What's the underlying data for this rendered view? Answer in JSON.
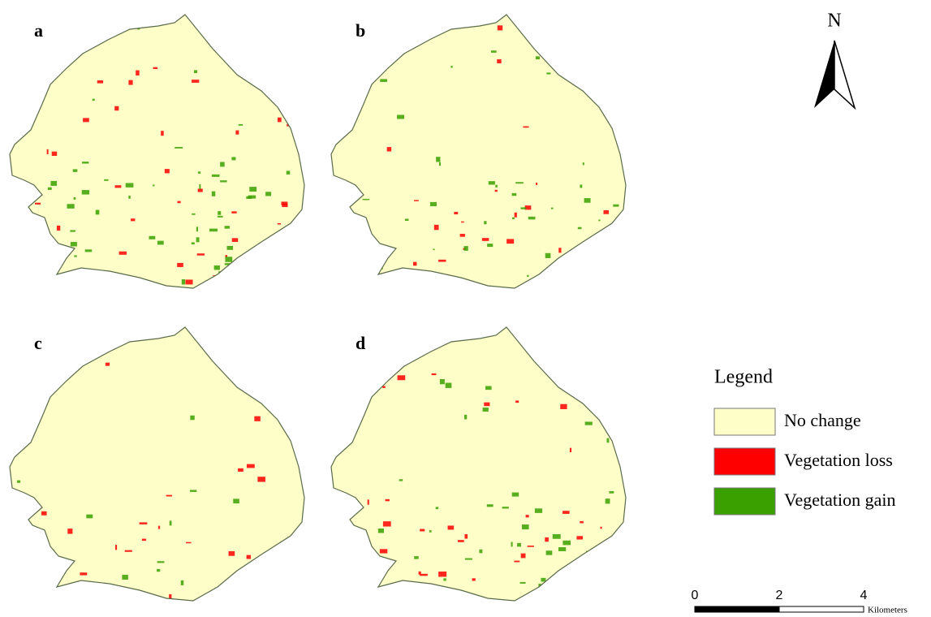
{
  "panels": [
    {
      "label": "a"
    },
    {
      "label": "b"
    },
    {
      "label": "c"
    },
    {
      "label": "d"
    }
  ],
  "north": "N",
  "legend": {
    "title": "Legend",
    "items": [
      {
        "label": "No change",
        "color": "#fefec8"
      },
      {
        "label": "Vegetation loss",
        "color": "#ff0000"
      },
      {
        "label": "Vegetation gain",
        "color": "#3aa000"
      }
    ]
  },
  "scale": {
    "ticks": [
      0,
      2,
      4
    ],
    "unit": "Kilometers"
  }
}
